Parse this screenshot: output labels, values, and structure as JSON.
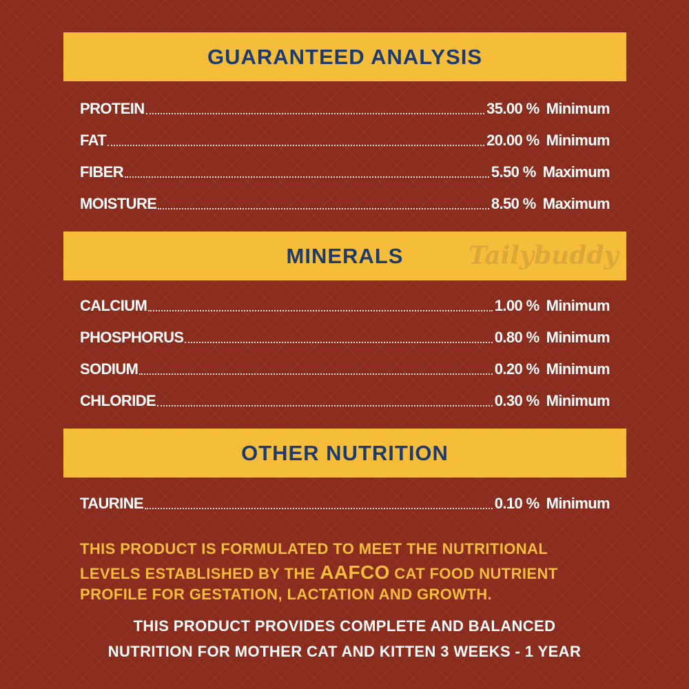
{
  "brand_watermark": "Tailybuddy",
  "sections": [
    {
      "title": "GUARANTEED ANALYSIS",
      "rows": [
        {
          "label": "PROTEIN",
          "value": "35.00 %",
          "qualifier": "Minimum"
        },
        {
          "label": "FAT",
          "value": "20.00 %",
          "qualifier": "Minimum"
        },
        {
          "label": "FIBER",
          "value": "5.50 %",
          "qualifier": "Maximum"
        },
        {
          "label": "MOISTURE",
          "value": "8.50 %",
          "qualifier": "Maximum"
        }
      ]
    },
    {
      "title": "MINERALS",
      "rows": [
        {
          "label": "CALCIUM",
          "value": "1.00 %",
          "qualifier": "Minimum"
        },
        {
          "label": "PHOSPHORUS",
          "value": "0.80 %",
          "qualifier": "Minimum"
        },
        {
          "label": "SODIUM",
          "value": "0.20 %",
          "qualifier": "Minimum"
        },
        {
          "label": "CHLORIDE",
          "value": "0.30 %",
          "qualifier": "Minimum"
        }
      ]
    },
    {
      "title": "OTHER NUTRITION",
      "rows": [
        {
          "label": "TAURINE",
          "value": "0.10 %",
          "qualifier": "Minimum"
        }
      ]
    }
  ],
  "statement": {
    "line1": "THIS PRODUCT IS FORMULATED TO MEET THE NUTRITIONAL",
    "line2_pre": "LEVELS ESTABLISHED BY THE ",
    "line2_em": "AAFCO",
    "line2_post": " CAT FOOD NUTRIENT",
    "line3": "PROFILE FOR GESTATION, LACTATION AND GROWTH."
  },
  "claim": {
    "line1": "THIS PRODUCT PROVIDES COMPLETE AND BALANCED",
    "line2": "NUTRITION FOR MOTHER CAT AND KITTEN 3 WEEKS - 1 YEAR"
  },
  "colors": {
    "background": "#8a2d1e",
    "banner": "#f6bd3b",
    "title": "#1f3b6b"
  }
}
